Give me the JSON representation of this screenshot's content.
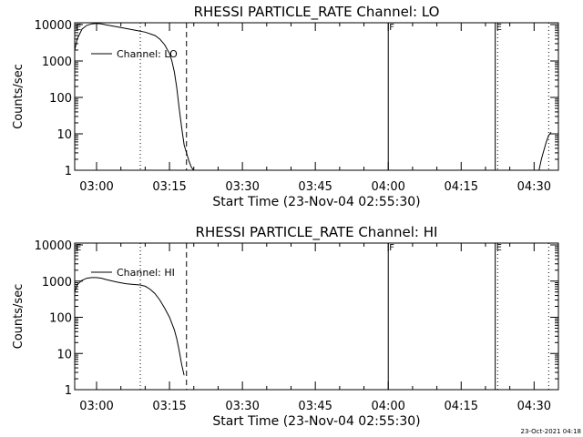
{
  "chart_data": [
    {
      "type": "line",
      "title": "RHESSI PARTICLE_RATE Channel: LO",
      "xlabel": "Start Time (23-Nov-04 02:55:30)",
      "ylabel": "Counts/sec",
      "yscale": "log",
      "xlim": [
        "02:55:30",
        "04:35:00"
      ],
      "ylim": [
        1,
        10000
      ],
      "x_ticks": [
        "03:00",
        "03:15",
        "03:30",
        "03:45",
        "04:00",
        "04:15",
        "04:30"
      ],
      "y_ticks": [
        "1",
        "10",
        "100",
        "1000",
        "10000"
      ],
      "legend": {
        "label": "Channel: LO",
        "placement": "top-left"
      },
      "markers": [
        {
          "label": "E",
          "time": "02:55:30",
          "style": "solid"
        },
        {
          "label": "",
          "time": "03:09:00",
          "style": "dotted"
        },
        {
          "label": "",
          "time": "03:18:30",
          "style": "dashed"
        },
        {
          "label": "F",
          "time": "04:00:00",
          "style": "solid"
        },
        {
          "label": "E",
          "time": "04:22:00",
          "style": "solid"
        },
        {
          "label": "",
          "time": "04:22:30",
          "style": "dotted"
        },
        {
          "label": "",
          "time": "04:33:00",
          "style": "dotted"
        }
      ],
      "series": [
        {
          "points": [
            [
              "02:55:30",
              2000
            ],
            [
              "02:56:00",
              4000
            ],
            [
              "02:57:00",
              7500
            ],
            [
              "02:58:00",
              9500
            ],
            [
              "02:59:00",
              10500
            ],
            [
              "03:00:00",
              10800
            ],
            [
              "03:01:00",
              10500
            ],
            [
              "03:02:00",
              9800
            ],
            [
              "03:04:00",
              8800
            ],
            [
              "03:06:00",
              7800
            ],
            [
              "03:08:00",
              7000
            ],
            [
              "03:10:00",
              6200
            ],
            [
              "03:12:00",
              5000
            ],
            [
              "03:13:00",
              4000
            ],
            [
              "03:14:00",
              2800
            ],
            [
              "03:15:00",
              1600
            ],
            [
              "03:15:30",
              1000
            ],
            [
              "03:16:00",
              500
            ],
            [
              "03:16:30",
              180
            ],
            [
              "03:17:00",
              50
            ],
            [
              "03:17:30",
              15
            ],
            [
              "03:18:00",
              5
            ],
            [
              "03:18:30",
              3
            ],
            [
              "03:19:00",
              1.8
            ],
            [
              "03:19:30",
              1.2
            ],
            [
              "03:20:00",
              1
            ]
          ]
        },
        {
          "points": [
            [
              "04:31:00",
              1
            ],
            [
              "04:31:30",
              2
            ],
            [
              "04:32:00",
              3.5
            ],
            [
              "04:32:30",
              6
            ],
            [
              "04:33:00",
              9
            ],
            [
              "04:33:30",
              11
            ]
          ]
        }
      ]
    },
    {
      "type": "line",
      "title": "RHESSI PARTICLE_RATE Channel: HI",
      "xlabel": "Start Time (23-Nov-04 02:55:30)",
      "ylabel": "Counts/sec",
      "yscale": "log",
      "xlim": [
        "02:55:30",
        "04:35:00"
      ],
      "ylim": [
        1,
        10000
      ],
      "x_ticks": [
        "03:00",
        "03:15",
        "03:30",
        "03:45",
        "04:00",
        "04:15",
        "04:30"
      ],
      "y_ticks": [
        "1",
        "10",
        "100",
        "1000",
        "10000"
      ],
      "legend": {
        "label": "Channel: HI",
        "placement": "top-left"
      },
      "markers": [
        {
          "label": "E",
          "time": "02:55:30",
          "style": "solid"
        },
        {
          "label": "",
          "time": "03:09:00",
          "style": "dotted"
        },
        {
          "label": "",
          "time": "03:18:30",
          "style": "dashed"
        },
        {
          "label": "F",
          "time": "04:00:00",
          "style": "solid"
        },
        {
          "label": "E",
          "time": "04:22:00",
          "style": "solid"
        },
        {
          "label": "",
          "time": "04:22:30",
          "style": "dotted"
        },
        {
          "label": "",
          "time": "04:33:00",
          "style": "dotted"
        }
      ],
      "series": [
        {
          "points": [
            [
              "02:55:30",
              500
            ],
            [
              "02:56:00",
              800
            ],
            [
              "02:57:00",
              1050
            ],
            [
              "02:58:00",
              1200
            ],
            [
              "02:59:00",
              1250
            ],
            [
              "03:00:00",
              1250
            ],
            [
              "03:01:00",
              1200
            ],
            [
              "03:02:00",
              1100
            ],
            [
              "03:04:00",
              950
            ],
            [
              "03:06:00",
              850
            ],
            [
              "03:08:00",
              800
            ],
            [
              "03:09:00",
              780
            ],
            [
              "03:10:00",
              720
            ],
            [
              "03:11:00",
              600
            ],
            [
              "03:12:00",
              450
            ],
            [
              "03:13:00",
              300
            ],
            [
              "03:14:00",
              180
            ],
            [
              "03:15:00",
              100
            ],
            [
              "03:16:00",
              45
            ],
            [
              "03:16:30",
              25
            ],
            [
              "03:17:00",
              12
            ],
            [
              "03:17:30",
              5
            ],
            [
              "03:18:00",
              2.5
            ]
          ]
        }
      ]
    }
  ],
  "footer": {
    "timestamp": "23-Oct-2021 04:18"
  }
}
